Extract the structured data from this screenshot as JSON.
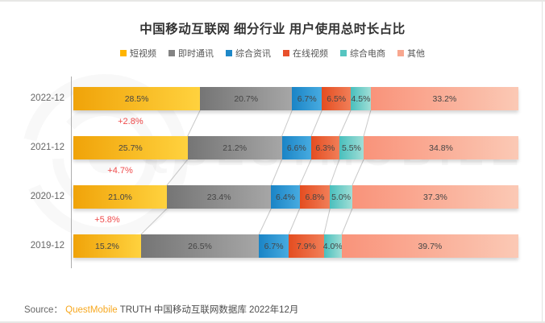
{
  "title": "中国移动互联网 细分行业 用户使用总时长占比",
  "watermark": {
    "text": "QUESTMOBILE"
  },
  "chart_data": {
    "type": "bar",
    "orientation": "horizontal-stacked-100",
    "title": "中国移动互联网 细分行业 用户使用总时长占比",
    "categories": [
      "2022-12",
      "2021-12",
      "2020-12",
      "2019-12"
    ],
    "series": [
      {
        "name": "短视频",
        "legend_color": "#FFB400",
        "gradient": [
          "#F0A309",
          "#FFD23E"
        ],
        "values": [
          28.5,
          25.7,
          21.0,
          15.2
        ]
      },
      {
        "name": "即时通讯",
        "legend_color": "#838383",
        "gradient": [
          "#757575",
          "#A6A6A6"
        ],
        "values": [
          20.7,
          21.2,
          23.4,
          26.5
        ]
      },
      {
        "name": "综合资讯",
        "legend_color": "#1E88C8",
        "gradient": [
          "#1A84C6",
          "#47ABE0"
        ],
        "values": [
          6.7,
          6.6,
          6.4,
          6.7
        ]
      },
      {
        "name": "在线视频",
        "legend_color": "#E8502B",
        "gradient": [
          "#E44D20",
          "#F17E58"
        ],
        "values": [
          6.5,
          6.3,
          6.8,
          7.9
        ]
      },
      {
        "name": "综合电商",
        "legend_color": "#56C5C1",
        "gradient": [
          "#49BFBD",
          "#A0DED6"
        ],
        "values": [
          4.5,
          5.5,
          5.0,
          4.0
        ]
      },
      {
        "name": "其他",
        "legend_color": "#F8A78F",
        "gradient": [
          "#F9937A",
          "#FBC9B5"
        ],
        "values": [
          33.2,
          34.8,
          37.3,
          39.7
        ]
      }
    ],
    "value_suffix": "%",
    "xlim": [
      0,
      100
    ],
    "legend_position": "top",
    "deltas": [
      "+2.8%",
      "+4.7%",
      "+5.8%"
    ],
    "delta_color": "#EF4B4B",
    "axis_color": "#AEAEAE",
    "connector_color": "#C9C9C9",
    "label_color": "#454545",
    "category_color": "#666666"
  },
  "source": {
    "prefix": "Source：",
    "brand": "QuestMobile",
    "brand_color": "#F7A81F",
    "rest": " TRUTH 中国移动互联网数据库 2022年12月"
  }
}
